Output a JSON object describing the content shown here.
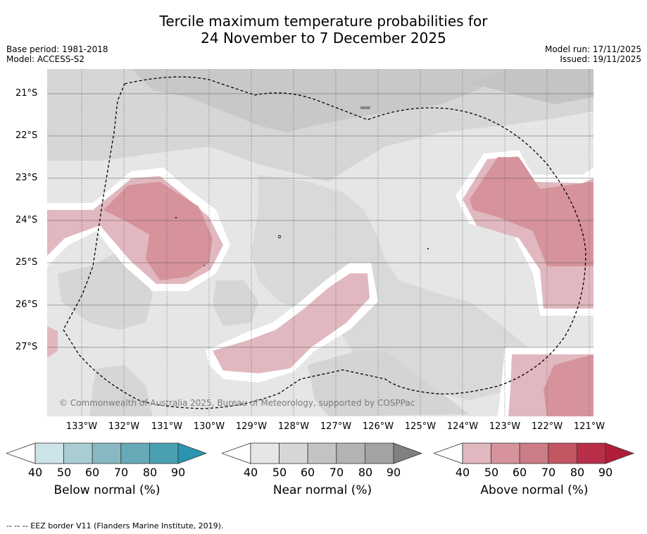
{
  "title_line1": "Tercile maximum temperature probabilities for",
  "title_line2": "24 November to 7 December 2025",
  "base_period": "Base period: 1981-2018",
  "model": "Model: ACCESS-S2",
  "model_run": "Model run: 17/11/2025",
  "issued": "Issued: 19/11/2025",
  "lat_labels": [
    "21°S",
    "22°S",
    "23°S",
    "24°S",
    "25°S",
    "26°S",
    "27°S"
  ],
  "lon_labels": [
    "133°W",
    "132°W",
    "131°W",
    "130°W",
    "129°W",
    "128°W",
    "127°W",
    "126°W",
    "125°W",
    "124°W",
    "123°W",
    "122°W",
    "121°W"
  ],
  "copyright": "© Commonwealth of Australia 2025, Bureau of Meteorology, supported by COSPPac",
  "legends": [
    {
      "caption": "Below normal (%)",
      "ticks": [
        "40",
        "50",
        "60",
        "70",
        "80",
        "90"
      ],
      "colors": [
        "#ffffff",
        "#cce3e8",
        "#a9cdd3",
        "#88b9c3",
        "#68a9b7",
        "#4aa0b2",
        "#2a95b0"
      ]
    },
    {
      "caption": "Near normal (%)",
      "ticks": [
        "40",
        "50",
        "60",
        "70",
        "80",
        "90"
      ],
      "colors": [
        "#ffffff",
        "#e6e6e6",
        "#d6d6d6",
        "#c4c4c4",
        "#b3b3b3",
        "#a3a3a3",
        "#808080"
      ]
    },
    {
      "caption": "Above normal (%)",
      "ticks": [
        "40",
        "50",
        "60",
        "70",
        "80",
        "90"
      ],
      "colors": [
        "#ffffff",
        "#e1b8bf",
        "#d6939b",
        "#cc7c84",
        "#c45562",
        "#b92e48",
        "#b01e3a"
      ]
    }
  ],
  "footnote": "-- -- -- EEZ border V11 (Flanders Marine Institute, 2019)."
}
